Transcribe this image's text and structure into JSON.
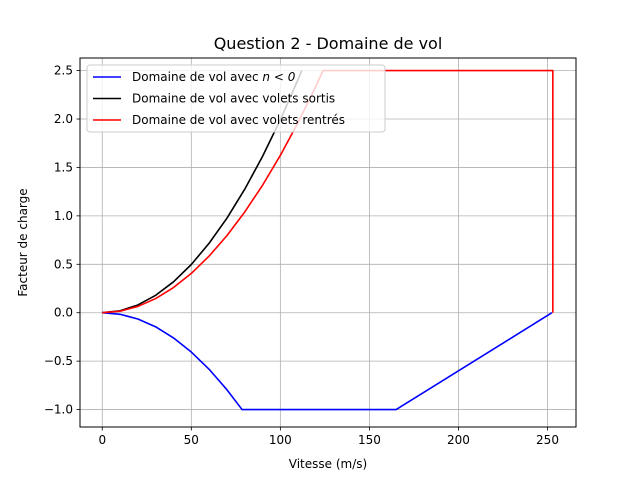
{
  "chart_data": {
    "type": "line",
    "title": "Question 2 - Domaine de vol",
    "xlabel": "Vitesse (m/s)",
    "ylabel": "Facteur de charge",
    "xlim": [
      -12.5,
      266
    ],
    "ylim": [
      -1.18,
      2.63
    ],
    "x_ticks": [
      0,
      50,
      100,
      150,
      200,
      250
    ],
    "x_tick_labels": [
      "0",
      "50",
      "100",
      "150",
      "200",
      "250"
    ],
    "y_ticks": [
      -1.0,
      -0.5,
      0.0,
      0.5,
      1.0,
      1.5,
      2.0,
      2.5
    ],
    "y_tick_labels": [
      "−1.0",
      "−0.5",
      "0.0",
      "0.5",
      "1.0",
      "1.5",
      "2.0",
      "2.5"
    ],
    "grid": true,
    "legend_position": "top-left",
    "series": [
      {
        "name": "Domaine de vol avec n < 0",
        "legend_prefix": "Domaine de vol avec ",
        "legend_math": "n < 0",
        "color": "#0000ff",
        "x": [
          0,
          10,
          20,
          30,
          40,
          50,
          60,
          70,
          78.5,
          165,
          252.5
        ],
        "y": [
          0,
          -0.016,
          -0.065,
          -0.146,
          -0.26,
          -0.406,
          -0.584,
          -0.795,
          -1.0,
          -1.0,
          0.0
        ]
      },
      {
        "name": "Domaine de vol avec volets sortis",
        "color": "#000000",
        "x": [
          0,
          10,
          20,
          30,
          40,
          50,
          60,
          70,
          80,
          90,
          100,
          110,
          112
        ],
        "y": [
          0,
          0.02,
          0.08,
          0.18,
          0.319,
          0.498,
          0.717,
          0.976,
          1.275,
          1.614,
          1.993,
          2.411,
          2.5
        ]
      },
      {
        "name": "Domaine de vol avec volets rentrés",
        "color": "#ff0000",
        "x": [
          0,
          10,
          20,
          30,
          40,
          50,
          60,
          70,
          80,
          90,
          100,
          110,
          120,
          124,
          252,
          253,
          253
        ],
        "y": [
          0,
          0.016,
          0.065,
          0.146,
          0.26,
          0.406,
          0.585,
          0.796,
          1.04,
          1.316,
          1.625,
          1.966,
          2.34,
          2.5,
          2.5,
          2.5,
          0.0
        ]
      }
    ]
  }
}
